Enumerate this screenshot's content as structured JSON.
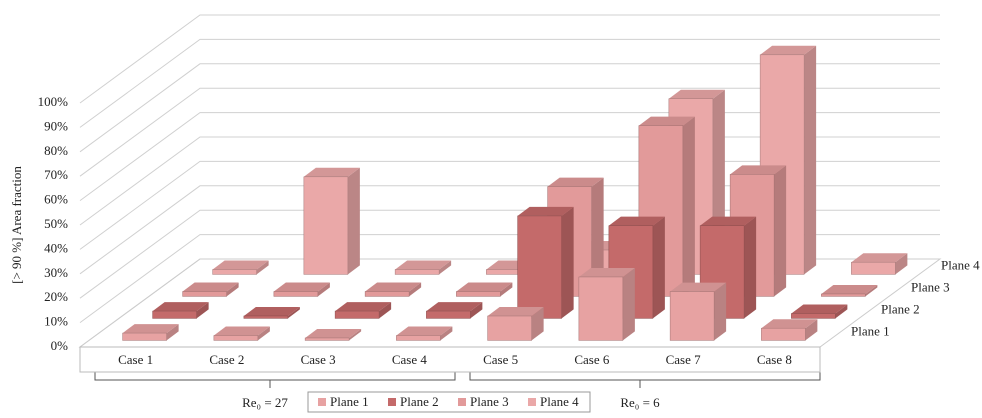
{
  "chart_data": {
    "type": "bar3d",
    "y_label": "[> 90 %] Area fraction",
    "categories": [
      "Case 1",
      "Case 2",
      "Case 3",
      "Case 4",
      "Case 5",
      "Case 6",
      "Case 7",
      "Case 8"
    ],
    "series": [
      {
        "name": "Plane 1",
        "color": "#e7a2a2",
        "values": [
          3,
          2,
          1,
          2,
          10,
          26,
          20,
          5
        ]
      },
      {
        "name": "Plane 2",
        "color": "#c46a6a",
        "values": [
          3,
          1,
          3,
          3,
          42,
          38,
          38,
          2
        ]
      },
      {
        "name": "Plane 3",
        "color": "#e29a9a",
        "values": [
          2,
          2,
          2,
          2,
          45,
          70,
          50,
          1
        ]
      },
      {
        "name": "Plane 4",
        "color": "#eaa8a8",
        "values": [
          2,
          40,
          2,
          2,
          10,
          72,
          90,
          5
        ]
      }
    ],
    "ylim": [
      0,
      100
    ],
    "yticks": [
      {
        "value": 0,
        "label": "0%"
      },
      {
        "value": 10,
        "label": "10%"
      },
      {
        "value": 20,
        "label": "20%"
      },
      {
        "value": 30,
        "label": "30%"
      },
      {
        "value": 40,
        "label": "40%"
      },
      {
        "value": 50,
        "label": "50%"
      },
      {
        "value": 60,
        "label": "60%"
      },
      {
        "value": 70,
        "label": "70%"
      },
      {
        "value": 80,
        "label": "80%"
      },
      {
        "value": 90,
        "label": "90%"
      },
      {
        "value": 100,
        "label": "100%"
      }
    ],
    "annotations": [
      "Re₀ = 27",
      "Re₀ = 6"
    ],
    "grid": true
  }
}
